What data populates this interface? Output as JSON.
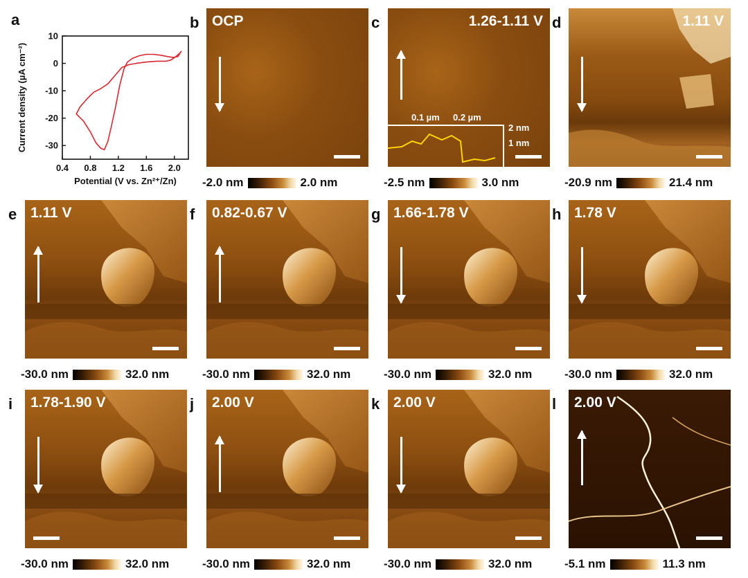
{
  "chart_data": {
    "type": "line",
    "xlabel": "Potential (V vs. Zn²⁺/Zn)",
    "ylabel": "Current density (µA cm⁻²)",
    "xlim": [
      0.4,
      2.2
    ],
    "ylim": [
      -35,
      10
    ],
    "xticks": [
      "0.4",
      "0.8",
      "1.2",
      "1.6",
      "2.0"
    ],
    "yticks": [
      "10",
      "0",
      "-10",
      "-20",
      "-30"
    ],
    "color": "#d8272e",
    "series": [
      {
        "values": [
          [
            2.1,
            4.5
          ],
          [
            2.05,
            2.5
          ],
          [
            1.98,
            2.2
          ],
          [
            1.9,
            2.5
          ],
          [
            1.8,
            3.0
          ],
          [
            1.7,
            3.3
          ],
          [
            1.6,
            3.3
          ],
          [
            1.5,
            2.8
          ],
          [
            1.4,
            1.8
          ],
          [
            1.33,
            0.5
          ],
          [
            1.28,
            -2.0
          ],
          [
            1.22,
            -8.0
          ],
          [
            1.16,
            -16.0
          ],
          [
            1.1,
            -23.0
          ],
          [
            1.05,
            -28.5
          ],
          [
            1.0,
            -31.5
          ],
          [
            0.95,
            -31.0
          ],
          [
            0.88,
            -29.0
          ],
          [
            0.8,
            -25.0
          ],
          [
            0.7,
            -21.0
          ],
          [
            0.6,
            -18.5
          ],
          [
            0.65,
            -16.0
          ],
          [
            0.75,
            -13.0
          ],
          [
            0.85,
            -10.5
          ],
          [
            0.95,
            -9.2
          ],
          [
            1.05,
            -7.5
          ],
          [
            1.15,
            -4.5
          ],
          [
            1.25,
            -1.5
          ],
          [
            1.35,
            -0.5
          ],
          [
            1.45,
            0.0
          ],
          [
            1.6,
            0.5
          ],
          [
            1.75,
            0.8
          ],
          [
            1.88,
            0.8
          ],
          [
            1.95,
            1.2
          ],
          [
            2.02,
            2.5
          ],
          [
            2.08,
            3.8
          ],
          [
            2.1,
            4.5
          ]
        ]
      }
    ]
  },
  "panel_a_label": "a",
  "afm_panels": [
    {
      "id": "b",
      "label": "b",
      "voltage": "OCP",
      "vpos": "left",
      "arrow": "down",
      "cmin": "-2.0 nm",
      "cmax": "2.0 nm",
      "scheme": "flat"
    },
    {
      "id": "c",
      "label": "c",
      "voltage": "1.26-1.11 V",
      "vpos": "right",
      "arrow": "up",
      "cmin": "-2.5 nm",
      "cmax": "3.0 nm",
      "scheme": "flat",
      "inset": {
        "tick1": "0.1 µm",
        "tick2": "0.2 µm",
        "y1": "2 nm",
        "y2": "1 nm"
      }
    },
    {
      "id": "d",
      "label": "d",
      "voltage": "1.11 V",
      "vpos": "right",
      "arrow": "down",
      "cmin": "-20.9 nm",
      "cmax": "21.4 nm",
      "scheme": "terrace"
    },
    {
      "id": "e",
      "label": "e",
      "voltage": "1.11 V",
      "vpos": "left",
      "arrow": "up",
      "cmin": "-30.0 nm",
      "cmax": "32.0 nm",
      "scheme": "flake"
    },
    {
      "id": "f",
      "label": "f",
      "voltage": "0.82-0.67 V",
      "vpos": "left",
      "arrow": "up",
      "cmin": "-30.0 nm",
      "cmax": "32.0 nm",
      "scheme": "flake"
    },
    {
      "id": "g",
      "label": "g",
      "voltage": "1.66-1.78 V",
      "vpos": "left",
      "arrow": "down",
      "cmin": "-30.0 nm",
      "cmax": "32.0 nm",
      "scheme": "flake"
    },
    {
      "id": "h",
      "label": "h",
      "voltage": "1.78 V",
      "vpos": "left",
      "arrow": "down",
      "cmin": "-30.0 nm",
      "cmax": "32.0 nm",
      "scheme": "flake"
    },
    {
      "id": "i",
      "label": "i",
      "voltage": "1.78-1.90 V",
      "vpos": "left",
      "arrow": "down",
      "cmin": "-30.0 nm",
      "cmax": "32.0 nm",
      "scheme": "flake"
    },
    {
      "id": "j",
      "label": "j",
      "voltage": "2.00 V",
      "vpos": "left",
      "arrow": "up",
      "cmin": "-30.0 nm",
      "cmax": "32.0 nm",
      "scheme": "flake"
    },
    {
      "id": "k",
      "label": "k",
      "voltage": "2.00 V",
      "vpos": "left",
      "arrow": "down",
      "cmin": "-30.0 nm",
      "cmax": "32.0 nm",
      "scheme": "flake"
    },
    {
      "id": "l",
      "label": "l",
      "voltage": "2.00 V",
      "vpos": "left",
      "arrow": "up",
      "cmin": "-5.1 nm",
      "cmax": "11.3 nm",
      "scheme": "crack"
    }
  ]
}
